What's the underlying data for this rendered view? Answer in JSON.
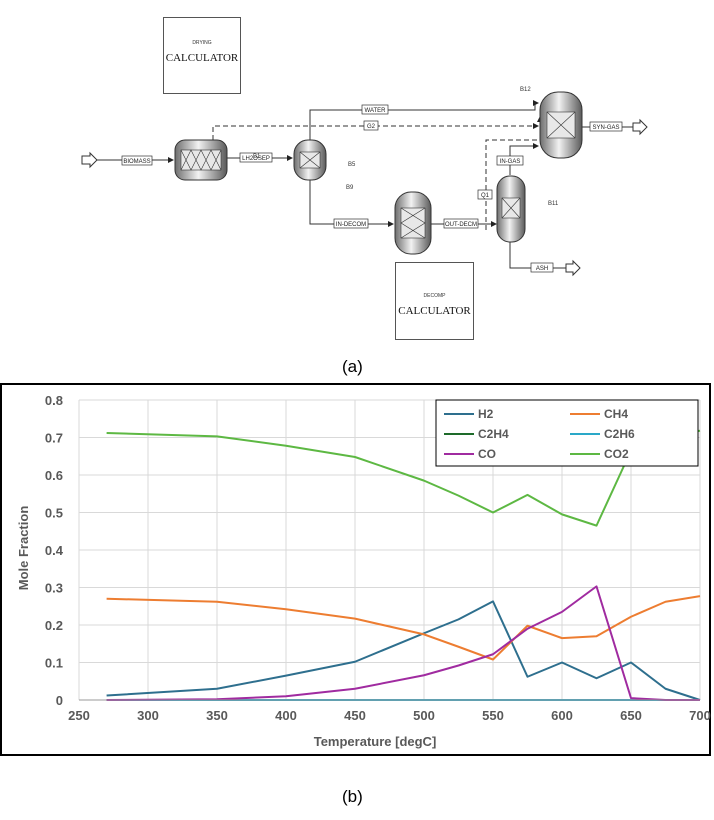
{
  "flowsheet": {
    "calculators": [
      {
        "small": "DRYING",
        "big": "CALCULATOR"
      },
      {
        "small": "DECOMP",
        "big": "CALCULATOR"
      }
    ],
    "blocks": {
      "b1": "B1",
      "b5": "B5",
      "b9": "B9",
      "b11": "B11",
      "b12": "B12"
    },
    "streams": {
      "biomass": "BIOMASS",
      "lh2osep": "LH2OSEP",
      "water": "WATER",
      "g2": "G2",
      "in_decom": "IN-DECOM",
      "out_decm": "OUT-DECM",
      "q1": "Q1",
      "in_gas": "IN-GAS",
      "syn_gas": "SYN-GAS",
      "ash": "ASH"
    }
  },
  "captions": {
    "a": "(a)",
    "b": "(b)"
  },
  "chart_data": {
    "type": "line",
    "title": "",
    "xlabel": "Temperature [degC]",
    "ylabel": "Mole Fraction",
    "xlim": [
      250,
      700
    ],
    "ylim": [
      0,
      0.8
    ],
    "xticks": [
      250,
      300,
      350,
      400,
      450,
      500,
      550,
      600,
      650,
      700
    ],
    "yticks": [
      0,
      0.1,
      0.2,
      0.3,
      0.4,
      0.5,
      0.6,
      0.7,
      0.8
    ],
    "ytick_labels": [
      "0",
      "0.1",
      "0.2",
      "0.3",
      "0.4",
      "0.5",
      "0.6",
      "0.7",
      "0.8"
    ],
    "legend_position": "top-right",
    "grid": true,
    "x": [
      270,
      350,
      400,
      450,
      500,
      525,
      550,
      575,
      600,
      625,
      650,
      675,
      700
    ],
    "series": [
      {
        "name": "H2",
        "color": "#2e6f8e",
        "values": [
          0.012,
          0.03,
          0.065,
          0.102,
          0.178,
          0.215,
          0.263,
          0.062,
          0.1,
          0.058,
          0.1,
          0.03,
          0.0
        ]
      },
      {
        "name": "CH4",
        "color": "#ed7d31",
        "values": [
          0.27,
          0.262,
          0.242,
          0.217,
          0.175,
          0.142,
          0.108,
          0.198,
          0.165,
          0.17,
          0.222,
          0.262,
          0.277
        ]
      },
      {
        "name": "C2H4",
        "color": "#1e6b2a",
        "values": [
          0,
          0,
          0,
          0,
          0,
          0,
          0,
          0,
          0,
          0,
          0,
          0,
          0
        ]
      },
      {
        "name": "C2H6",
        "color": "#2aa8c8",
        "values": [
          0,
          0,
          0,
          0,
          0,
          0,
          0,
          0,
          0,
          0,
          0,
          0,
          0
        ]
      },
      {
        "name": "CO",
        "color": "#a02ba0",
        "values": [
          0.0,
          0.002,
          0.01,
          0.03,
          0.066,
          0.092,
          0.122,
          0.19,
          0.235,
          0.303,
          0.005,
          0.0,
          0.0
        ]
      },
      {
        "name": "CO2",
        "color": "#5db843",
        "values": [
          0.712,
          0.703,
          0.678,
          0.648,
          0.585,
          0.545,
          0.5,
          0.547,
          0.495,
          0.465,
          0.665,
          0.705,
          0.718
        ]
      }
    ]
  }
}
